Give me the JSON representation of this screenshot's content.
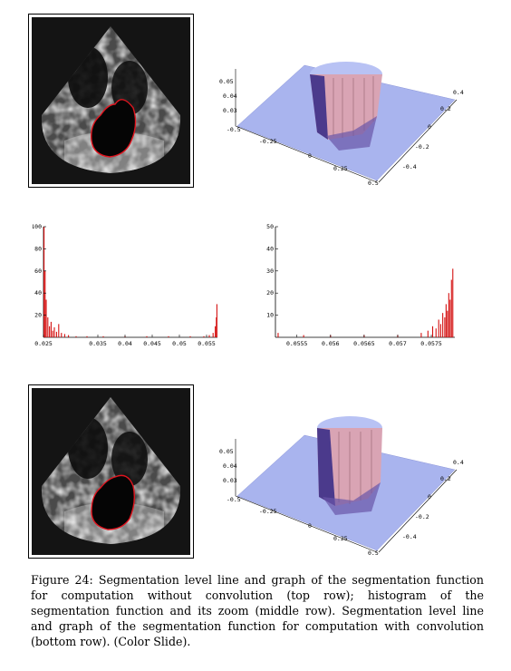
{
  "figure": {
    "caption": "Figure 24: Segmentation level line and graph of the segmentation function for computation without convolution (top row); histogram of the segmentation function and its zoom (middle row). Segmentation level line and graph of the segmentation function for computation with convolution (bottom row). (Color Slide)."
  },
  "colors": {
    "surface": "#a9b4ee",
    "pillar_light": "#d9a4b4",
    "pillar_dark": "#4b3a8c",
    "contour": "#e0141e",
    "histogram": "#d41010"
  },
  "plot3d_top": {
    "z_ticks": [
      "0.05",
      "0.04",
      "0.03"
    ],
    "x_ticks": [
      "-0.5",
      "-0.25",
      "0",
      "0.25",
      "0.5"
    ],
    "y_ticks": [
      "0.4",
      "0.2",
      "0",
      "-0.2",
      "-0.4"
    ]
  },
  "plot3d_bottom": {
    "z_ticks": [
      "0.05",
      "0.04",
      "0.03"
    ],
    "x_ticks": [
      "-0.5",
      "-0.25",
      "0",
      "0.25",
      "0.5"
    ],
    "y_ticks": [
      "0.4",
      "0.2",
      "0",
      "-0.2",
      "-0.4"
    ]
  },
  "chart_data": [
    {
      "type": "bar",
      "x_ticks": [
        "0.025",
        "0.035",
        "0.04",
        "0.045",
        "0.05",
        "0.055"
      ],
      "y_ticks": [
        "20",
        "40",
        "60",
        "80",
        "100"
      ],
      "xlim": [
        0.025,
        0.057
      ],
      "ylim": [
        0,
        100
      ],
      "bins": [
        {
          "x": 0.0251,
          "y": 100
        },
        {
          "x": 0.0253,
          "y": 60
        },
        {
          "x": 0.0255,
          "y": 34
        },
        {
          "x": 0.0258,
          "y": 18
        },
        {
          "x": 0.0261,
          "y": 10
        },
        {
          "x": 0.0264,
          "y": 14
        },
        {
          "x": 0.0267,
          "y": 6
        },
        {
          "x": 0.027,
          "y": 9
        },
        {
          "x": 0.0274,
          "y": 5
        },
        {
          "x": 0.0278,
          "y": 12
        },
        {
          "x": 0.0283,
          "y": 4
        },
        {
          "x": 0.0289,
          "y": 3
        },
        {
          "x": 0.0296,
          "y": 2
        },
        {
          "x": 0.031,
          "y": 1
        },
        {
          "x": 0.033,
          "y": 1
        },
        {
          "x": 0.036,
          "y": 1
        },
        {
          "x": 0.04,
          "y": 1
        },
        {
          "x": 0.044,
          "y": 1
        },
        {
          "x": 0.048,
          "y": 1
        },
        {
          "x": 0.052,
          "y": 1
        },
        {
          "x": 0.0545,
          "y": 1
        },
        {
          "x": 0.0555,
          "y": 2
        },
        {
          "x": 0.0562,
          "y": 4
        },
        {
          "x": 0.0566,
          "y": 10
        },
        {
          "x": 0.0568,
          "y": 18
        },
        {
          "x": 0.0569,
          "y": 30
        }
      ]
    },
    {
      "type": "bar",
      "x_ticks": [
        "0.0555",
        "0.056",
        "0.0565",
        "0.057",
        "0.0575"
      ],
      "y_ticks": [
        "10",
        "20",
        "30",
        "40",
        "50"
      ],
      "xlim": [
        0.05518,
        0.05785
      ],
      "ylim": [
        0,
        50
      ],
      "bins": [
        {
          "x": 0.05522,
          "y": 2
        },
        {
          "x": 0.0556,
          "y": 1
        },
        {
          "x": 0.056,
          "y": 1
        },
        {
          "x": 0.0565,
          "y": 1
        },
        {
          "x": 0.057,
          "y": 1
        },
        {
          "x": 0.05735,
          "y": 2
        },
        {
          "x": 0.05745,
          "y": 3
        },
        {
          "x": 0.05752,
          "y": 5
        },
        {
          "x": 0.05757,
          "y": 4
        },
        {
          "x": 0.05761,
          "y": 8
        },
        {
          "x": 0.05764,
          "y": 6
        },
        {
          "x": 0.05767,
          "y": 11
        },
        {
          "x": 0.0577,
          "y": 9
        },
        {
          "x": 0.05772,
          "y": 15
        },
        {
          "x": 0.05774,
          "y": 12
        },
        {
          "x": 0.05776,
          "y": 20
        },
        {
          "x": 0.05778,
          "y": 17
        },
        {
          "x": 0.0578,
          "y": 26
        },
        {
          "x": 0.05782,
          "y": 31
        }
      ]
    }
  ]
}
